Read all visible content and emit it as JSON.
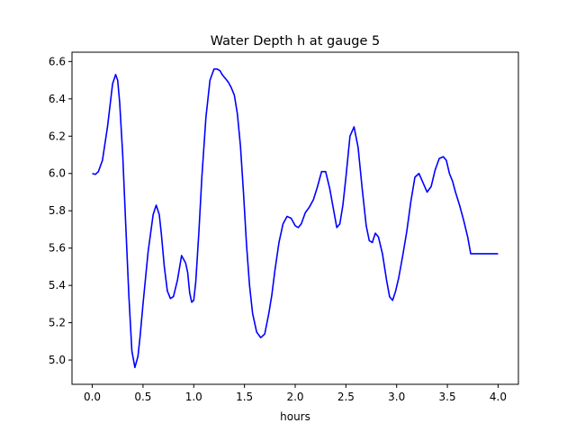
{
  "chart_data": {
    "type": "line",
    "title": "Water Depth h at gauge 5",
    "xlabel": "hours",
    "ylabel": "",
    "xlim": [
      -0.2,
      4.2
    ],
    "ylim": [
      4.87,
      6.65
    ],
    "xticks": [
      0.0,
      0.5,
      1.0,
      1.5,
      2.0,
      2.5,
      3.0,
      3.5,
      4.0
    ],
    "xtick_labels": [
      "0.0",
      "0.5",
      "1.0",
      "1.5",
      "2.0",
      "2.5",
      "3.0",
      "3.5",
      "4.0"
    ],
    "yticks": [
      5.0,
      5.2,
      5.4,
      5.6,
      5.8,
      6.0,
      6.2,
      6.4,
      6.6
    ],
    "ytick_labels": [
      "5.0",
      "5.2",
      "5.4",
      "5.6",
      "5.8",
      "6.0",
      "6.2",
      "6.4",
      "6.6"
    ],
    "grid": false,
    "series": [
      {
        "color": "#0000ff",
        "x": [
          0.0,
          0.03,
          0.06,
          0.1,
          0.15,
          0.2,
          0.23,
          0.25,
          0.27,
          0.3,
          0.33,
          0.36,
          0.39,
          0.42,
          0.45,
          0.47,
          0.5,
          0.55,
          0.6,
          0.63,
          0.66,
          0.68,
          0.71,
          0.74,
          0.77,
          0.8,
          0.84,
          0.88,
          0.92,
          0.94,
          0.96,
          0.98,
          1.0,
          1.02,
          1.05,
          1.08,
          1.12,
          1.16,
          1.2,
          1.23,
          1.26,
          1.28,
          1.31,
          1.34,
          1.37,
          1.4,
          1.43,
          1.46,
          1.49,
          1.52,
          1.55,
          1.58,
          1.62,
          1.66,
          1.7,
          1.74,
          1.77,
          1.8,
          1.84,
          1.88,
          1.92,
          1.96,
          2.0,
          2.03,
          2.06,
          2.1,
          2.14,
          2.18,
          2.22,
          2.26,
          2.3,
          2.34,
          2.38,
          2.41,
          2.44,
          2.47,
          2.5,
          2.54,
          2.58,
          2.62,
          2.66,
          2.7,
          2.73,
          2.76,
          2.79,
          2.82,
          2.86,
          2.9,
          2.93,
          2.96,
          2.99,
          3.02,
          3.06,
          3.1,
          3.14,
          3.18,
          3.22,
          3.26,
          3.3,
          3.34,
          3.38,
          3.42,
          3.46,
          3.49,
          3.52,
          3.55,
          3.58,
          3.62,
          3.66,
          3.7,
          3.73,
          3.76,
          3.8,
          3.84,
          3.88,
          3.92,
          3.96,
          4.0
        ],
        "y": [
          6.0,
          5.995,
          6.01,
          6.07,
          6.25,
          6.48,
          6.53,
          6.5,
          6.38,
          6.1,
          5.72,
          5.35,
          5.05,
          4.96,
          5.02,
          5.12,
          5.3,
          5.58,
          5.78,
          5.83,
          5.78,
          5.68,
          5.5,
          5.37,
          5.33,
          5.34,
          5.43,
          5.56,
          5.52,
          5.47,
          5.36,
          5.31,
          5.32,
          5.42,
          5.68,
          5.98,
          6.3,
          6.5,
          6.56,
          6.56,
          6.55,
          6.53,
          6.51,
          6.49,
          6.46,
          6.42,
          6.32,
          6.15,
          5.9,
          5.62,
          5.4,
          5.25,
          5.15,
          5.12,
          5.14,
          5.25,
          5.35,
          5.48,
          5.63,
          5.73,
          5.77,
          5.76,
          5.72,
          5.71,
          5.73,
          5.79,
          5.82,
          5.86,
          5.93,
          6.01,
          6.01,
          5.92,
          5.8,
          5.71,
          5.73,
          5.83,
          5.98,
          6.2,
          6.25,
          6.14,
          5.92,
          5.72,
          5.64,
          5.63,
          5.68,
          5.66,
          5.57,
          5.43,
          5.34,
          5.32,
          5.37,
          5.44,
          5.56,
          5.69,
          5.85,
          5.98,
          6.0,
          5.95,
          5.9,
          5.93,
          6.02,
          6.08,
          6.09,
          6.07,
          6.0,
          5.96,
          5.9,
          5.83,
          5.75,
          5.66,
          5.57,
          5.57,
          5.57,
          5.57,
          5.57,
          5.57,
          5.57,
          5.57
        ]
      }
    ]
  }
}
